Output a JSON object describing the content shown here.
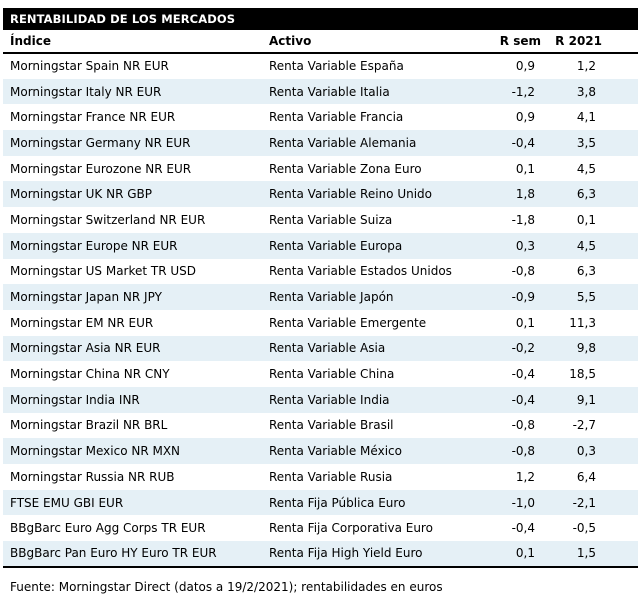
{
  "title": "RENTABILIDAD DE LOS MERCADOS",
  "footer": "Fuente: Morningstar Direct (datos a 19/2/2021); rentabilidades en euros",
  "colors": {
    "title_bg": "#000000",
    "title_fg": "#ffffff",
    "row_stripe": "#e5f0f6",
    "border": "#000000",
    "text": "#000000"
  },
  "chart_data": {
    "type": "table",
    "title": "RENTABILIDAD DE LOS MERCADOS",
    "columns": [
      "Índice",
      "Activo",
      "R sem",
      "R 2021"
    ],
    "rows": [
      [
        "Morningstar Spain NR EUR",
        "Renta Variable España",
        "0,9",
        "1,2"
      ],
      [
        "Morningstar Italy NR EUR",
        "Renta Variable Italia",
        "-1,2",
        "3,8"
      ],
      [
        "Morningstar France NR EUR",
        "Renta Variable Francia",
        "0,9",
        "4,1"
      ],
      [
        "Morningstar Germany NR EUR",
        "Renta Variable Alemania",
        "-0,4",
        "3,5"
      ],
      [
        "Morningstar Eurozone NR EUR",
        "Renta Variable Zona Euro",
        "0,1",
        "4,5"
      ],
      [
        "Morningstar UK NR GBP",
        "Renta Variable Reino Unido",
        "1,8",
        "6,3"
      ],
      [
        "Morningstar Switzerland NR EUR",
        "Renta Variable Suiza",
        "-1,8",
        "0,1"
      ],
      [
        "Morningstar Europe NR EUR",
        "Renta Variable Europa",
        "0,3",
        "4,5"
      ],
      [
        "Morningstar US Market TR USD",
        "Renta Variable Estados Unidos",
        "-0,8",
        "6,3"
      ],
      [
        "Morningstar Japan NR JPY",
        "Renta Variable Japón",
        "-0,9",
        "5,5"
      ],
      [
        "Morningstar EM NR EUR",
        "Renta Variable Emergente",
        "0,1",
        "11,3"
      ],
      [
        "Morningstar Asia NR EUR",
        "Renta Variable Asia",
        "-0,2",
        "9,8"
      ],
      [
        "Morningstar China NR CNY",
        "Renta Variable China",
        "-0,4",
        "18,5"
      ],
      [
        "Morningstar India INR",
        "Renta Variable India",
        "-0,4",
        "9,1"
      ],
      [
        "Morningstar Brazil NR BRL",
        "Renta Variable Brasil",
        "-0,8",
        "-2,7"
      ],
      [
        "Morningstar Mexico NR MXN",
        "Renta Variable México",
        "-0,8",
        "0,3"
      ],
      [
        "Morningstar Russia NR RUB",
        "Renta Variable Rusia",
        "1,2",
        "6,4"
      ],
      [
        "FTSE EMU GBI EUR",
        "Renta Fija Pública Euro",
        "-1,0",
        "-2,1"
      ],
      [
        "BBgBarc Euro Agg Corps TR EUR",
        "Renta Fija Corporativa Euro",
        "-0,4",
        "-0,5"
      ],
      [
        "BBgBarc Pan Euro HY Euro TR EUR",
        "Renta Fija High Yield Euro",
        "0,1",
        "1,5"
      ]
    ],
    "footnote": "Fuente: Morningstar Direct (datos a 19/2/2021); rentabilidades en euros"
  }
}
